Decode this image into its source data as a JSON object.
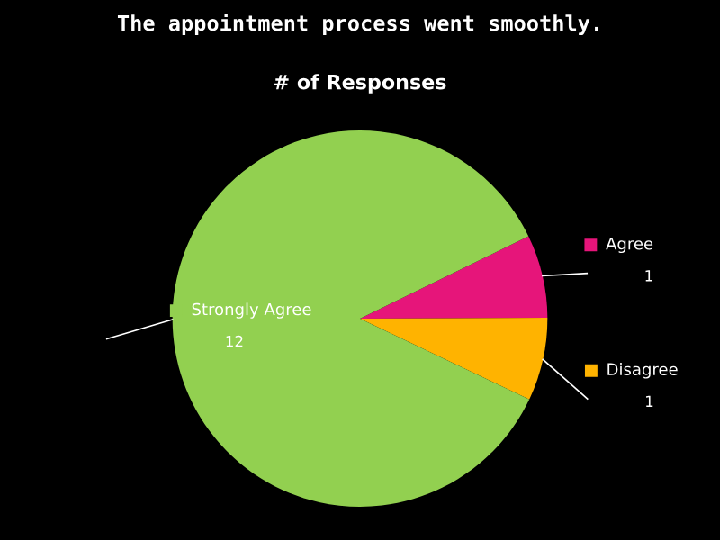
{
  "chart_data": {
    "type": "pie",
    "title": "The appointment process went smoothly.",
    "subtitle": "# of Responses",
    "categories": [
      "Agree",
      "Disagree",
      "Strongly Agree"
    ],
    "values": [
      1,
      1,
      12
    ],
    "colors": [
      "#e6157a",
      "#ffb300",
      "#92d050"
    ],
    "legend": "right",
    "data_labels": true
  }
}
